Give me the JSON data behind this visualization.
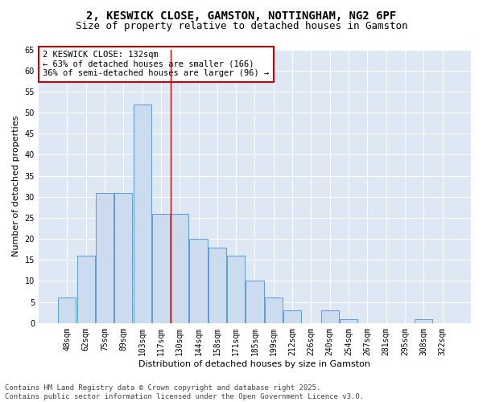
{
  "title1": "2, KESWICK CLOSE, GAMSTON, NOTTINGHAM, NG2 6PF",
  "title2": "Size of property relative to detached houses in Gamston",
  "xlabel": "Distribution of detached houses by size in Gamston",
  "ylabel": "Number of detached properties",
  "bar_labels": [
    "48sqm",
    "62sqm",
    "75sqm",
    "89sqm",
    "103sqm",
    "117sqm",
    "130sqm",
    "144sqm",
    "158sqm",
    "171sqm",
    "185sqm",
    "199sqm",
    "212sqm",
    "226sqm",
    "240sqm",
    "254sqm",
    "267sqm",
    "281sqm",
    "295sqm",
    "308sqm",
    "322sqm"
  ],
  "bar_values": [
    6,
    16,
    31,
    31,
    52,
    26,
    26,
    20,
    18,
    16,
    10,
    6,
    3,
    0,
    3,
    1,
    0,
    0,
    0,
    1,
    0
  ],
  "bar_color": "#ccdcee",
  "bar_edge_color": "#5b9bd5",
  "figure_bg_color": "#ffffff",
  "plot_bg_color": "#dde8f4",
  "vline_x": 5.5,
  "vline_color": "#cc0000",
  "annotation_text": "2 KESWICK CLOSE: 132sqm\n← 63% of detached houses are smaller (166)\n36% of semi-detached houses are larger (96) →",
  "annotation_box_color": "#ffffff",
  "annotation_border_color": "#cc0000",
  "ylim": [
    0,
    65
  ],
  "yticks": [
    0,
    5,
    10,
    15,
    20,
    25,
    30,
    35,
    40,
    45,
    50,
    55,
    60,
    65
  ],
  "footer1": "Contains HM Land Registry data © Crown copyright and database right 2025.",
  "footer2": "Contains public sector information licensed under the Open Government Licence v3.0.",
  "title1_fontsize": 10,
  "title2_fontsize": 9,
  "axis_label_fontsize": 8,
  "tick_fontsize": 7,
  "annotation_fontsize": 7.5,
  "footer_fontsize": 6.5
}
